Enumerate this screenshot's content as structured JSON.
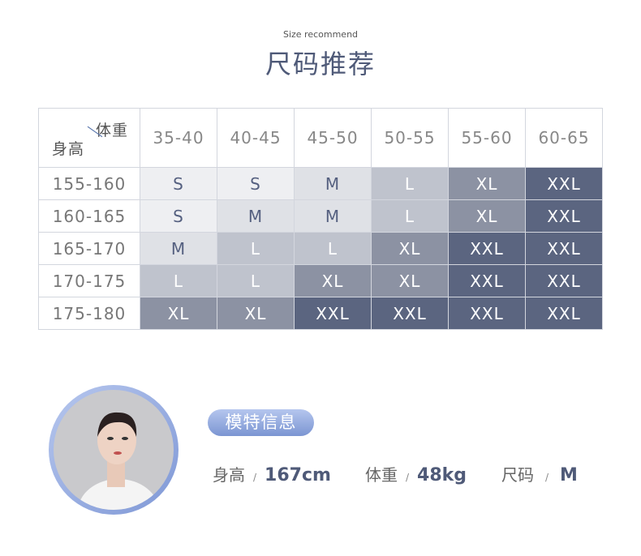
{
  "header": {
    "subtitle": "Size recommend",
    "title": "尺码推荐"
  },
  "table": {
    "corner_weight": "体重",
    "corner_height": "身高",
    "weights": [
      "35-40",
      "40-45",
      "45-50",
      "50-55",
      "55-60",
      "60-65"
    ],
    "rows": [
      {
        "height": "155-160",
        "sizes": [
          "S",
          "S",
          "M",
          "L",
          "XL",
          "XXL"
        ]
      },
      {
        "height": "160-165",
        "sizes": [
          "S",
          "M",
          "M",
          "L",
          "XL",
          "XXL"
        ]
      },
      {
        "height": "165-170",
        "sizes": [
          "M",
          "L",
          "L",
          "XL",
          "XXL",
          "XXL"
        ]
      },
      {
        "height": "170-175",
        "sizes": [
          "L",
          "L",
          "XL",
          "XL",
          "XXL",
          "XXL"
        ]
      },
      {
        "height": "175-180",
        "sizes": [
          "XL",
          "XL",
          "XXL",
          "XXL",
          "XXL",
          "XXL"
        ]
      }
    ],
    "colors": {
      "S": "#eeeff2",
      "M": "#dfe1e6",
      "L": "#bfc3cd",
      "XL": "#8c92a3",
      "XXL": "#5b6580"
    }
  },
  "model": {
    "badge": "模特信息",
    "height_label": "身高",
    "height": "167cm",
    "weight_label": "体重",
    "weight": "48kg",
    "size_label": "尺码",
    "size": "M",
    "sep": "/"
  }
}
